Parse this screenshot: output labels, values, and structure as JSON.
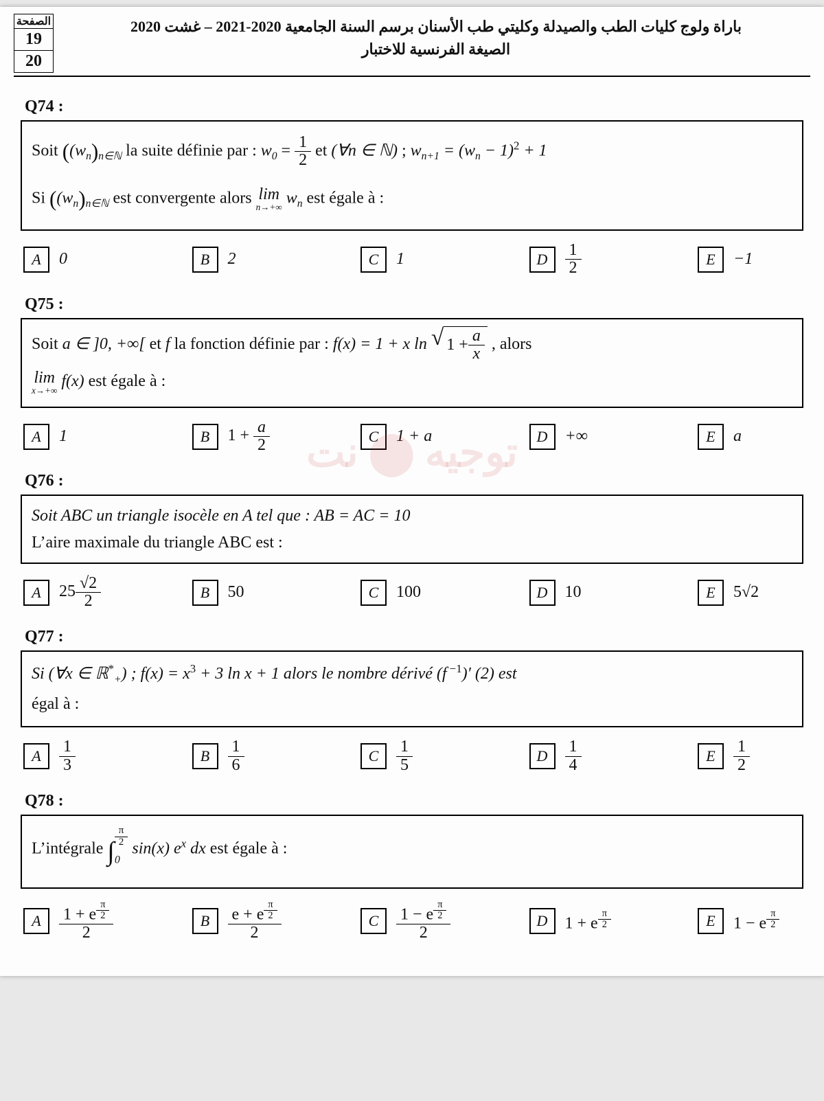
{
  "header": {
    "page_label": "الصفحة",
    "page_current": "19",
    "page_total": "20",
    "title_line1": "باراة ولوج كليات الطب والصيدلة وكليتي طب الأسنان برسم السنة الجامعية 2020-2021 – غشت 2020",
    "title_line2": "الصيغة الفرنسية للاختبار"
  },
  "watermark": "توجيه ⬤ نت",
  "q74": {
    "num": "Q74 :",
    "t1": "Soit ",
    "seq": "(w",
    "seq_sub": "n",
    "seq_cond": "n∈ℕ",
    "t2": "  la suite définie par :   ",
    "w0": "w",
    "w0sub": "0",
    "eq": " = ",
    "half_n": "1",
    "half_d": "2",
    "et": "  et   ",
    "forall": "(∀n ∈ ℕ)",
    "semicolon": "   ;   ",
    "wn1": "w",
    "wn1sub": "n+1",
    "rhs1": " = (w",
    "rhs_sub": "n",
    "rhs2": " − 1)",
    "rhs_sup": "2",
    "rhs3": " + 1",
    "line2a": "Si ",
    "line2b": " est convergente alors  ",
    "lim": "lim",
    "lim_under": "n→+∞",
    "wn": " w",
    "wnsub": "n",
    "line2c": "  est égale à :",
    "answers": {
      "A": "0",
      "B": "2",
      "C": "1",
      "D_n": "1",
      "D_d": "2",
      "E": "−1"
    }
  },
  "q75": {
    "num": "Q75 :",
    "t1": "Soit ",
    "a_in": "a ∈ ]0, +∞[",
    "t2": "   et  ",
    "f": "f",
    "t3": "  la fonction définie par :    ",
    "fx": "f(x) = 1 + x ln",
    "sqrt_body_pre": "1 + ",
    "sqrt_frac_n": "a",
    "sqrt_frac_d": "x",
    "alors": " , alors",
    "lim": "lim",
    "lim_under": "x→+∞",
    "fx2": " f(x)",
    "line2c": "  est égale à :",
    "answers": {
      "A": "1",
      "B_pre": "1 + ",
      "B_n": "a",
      "B_d": "2",
      "C": "1 + a",
      "D": "+∞",
      "E": "a"
    }
  },
  "q76": {
    "num": "Q76 :",
    "l1": "Soit  ABC  un triangle isocèle en  A  tel que :    AB = AC = 10",
    "l2": "L’aire maximale du triangle  ABC  est :",
    "answers": {
      "A_pre": "25",
      "A_n": "√2",
      "A_d": "2",
      "B": "50",
      "C": "100",
      "D": "10",
      "E": "5√2"
    }
  },
  "q77": {
    "num": "Q77 :",
    "l1a": "Si  (∀x ∈ ℝ",
    "l1star": "*",
    "l1plus": "+",
    "l1b": ")   ;    f(x) = x",
    "cube": "3",
    "l1c": " + 3 ln x + 1   alors le nombre dérivé   (f",
    "inv": " −1",
    "l1d": ")′ (2)  est",
    "l2": "égal à :",
    "answers": {
      "A_n": "1",
      "A_d": "3",
      "B_n": "1",
      "B_d": "6",
      "C_n": "1",
      "C_d": "5",
      "D_n": "1",
      "D_d": "4",
      "E_n": "1",
      "E_d": "2"
    }
  },
  "q78": {
    "num": "Q78 :",
    "l1a": "L’intégrale   ",
    "int_low": "0",
    "int_up_n": "π",
    "int_up_d": "2",
    "integrand": " sin(x) e",
    "exp_x": "x",
    "dx": " dx",
    "l1b": "   est égale à :",
    "exp_num_n": "π",
    "exp_num_d": "2",
    "answers": {
      "A_n_pre": "1 + e",
      "A_d": "2",
      "B_n_pre": "e + e",
      "B_d": "2",
      "C_n_pre": "1 − e",
      "C_d": "2",
      "D_pre": "1 + e",
      "E_pre": "1 − e"
    }
  }
}
